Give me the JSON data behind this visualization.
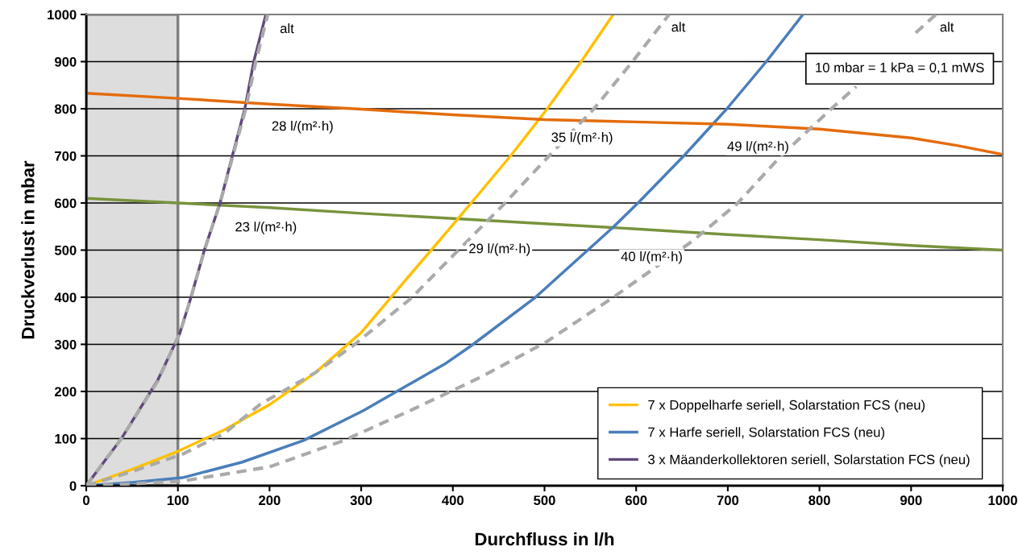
{
  "chart_data": {
    "type": "line",
    "xlabel": "Durchfluss in l/h",
    "ylabel": "Druckverlust in mbar",
    "xlim": [
      0,
      1000
    ],
    "ylim": [
      0,
      1000
    ],
    "xticks": [
      0,
      100,
      200,
      300,
      400,
      500,
      600,
      700,
      800,
      900,
      1000
    ],
    "yticks": [
      0,
      100,
      200,
      300,
      400,
      500,
      600,
      700,
      800,
      900,
      1000
    ],
    "grid": "y",
    "legend": "bottom right",
    "line_style": "solid",
    "marker": "none",
    "bands": [
      {
        "axis": "x",
        "from": 0,
        "to": 100,
        "color": "#dddddd"
      }
    ],
    "series": [
      {
        "color": "#77933c",
        "x": [
          0,
          100,
          200,
          300,
          400,
          500,
          600,
          700,
          800,
          900,
          1000
        ],
        "values": [
          610,
          600,
          590,
          578,
          567,
          556,
          545,
          533,
          522,
          510,
          500
        ]
      },
      {
        "name": "7 x Doppelharfe seriell, Solarstation FCS (neu)",
        "color": "#ffc000",
        "x": [
          0,
          50,
          100,
          150,
          200,
          250,
          300,
          350,
          391,
          420,
          463,
          503,
          540,
          575
        ],
        "values": [
          0,
          35,
          73,
          118,
          172,
          240,
          325,
          440,
          533,
          600,
          700,
          800,
          900,
          1000
        ]
      },
      {
        "name": "7 x Harfe seriell, Solarstation FCS (neu)",
        "color": "#4a7ebb",
        "x": [
          0,
          50,
          105,
          170,
          237,
          302,
          391,
          420,
          489,
          574,
          602,
          652,
          699,
          742,
          782
        ],
        "values": [
          0,
          7,
          17,
          50,
          96,
          159,
          258,
          297,
          398,
          547,
          600,
          700,
          800,
          900,
          1000
        ]
      },
      {
        "name": "3 x Mäanderkollektoren seriell, Solarstation FCS (neu)",
        "color": "#604a7b",
        "x": [
          0,
          38,
          78,
          102,
          114,
          129,
          146,
          159,
          173,
          183,
          196
        ],
        "values": [
          0,
          99,
          224,
          323,
          398,
          501,
          600,
          697,
          800,
          902,
          1000
        ]
      },
      {
        "color": "#e46c0a",
        "x": [
          0,
          100,
          200,
          300,
          400,
          500,
          600,
          700,
          800,
          900,
          950,
          1000
        ],
        "values": [
          833,
          822,
          810,
          799,
          787,
          777,
          772,
          767,
          757,
          738,
          722,
          703
        ]
      },
      {
        "color": "#aaaaaa",
        "line_style": "dashed",
        "x": [
          0,
          38,
          78,
          102,
          114,
          129,
          146,
          160,
          174,
          185,
          198
        ],
        "values": [
          0,
          99,
          222,
          323,
          398,
          500,
          600,
          700,
          800,
          900,
          1000
        ]
      },
      {
        "color": "#aaaaaa",
        "line_style": "dashed",
        "x": [
          0,
          50,
          105,
          150,
          190,
          250,
          291,
          354,
          400,
          457,
          505,
          554,
          596,
          636
        ],
        "values": [
          0,
          30,
          67,
          110,
          173,
          240,
          297,
          397,
          488,
          600,
          700,
          800,
          900,
          1000
        ]
      },
      {
        "color": "#aaaaaa",
        "line_style": "dashed",
        "x": [
          0,
          50,
          105,
          200,
          281,
          353,
          430,
          501,
          573,
          662,
          711,
          758,
          813,
          840,
          870,
          905,
          927
        ],
        "values": [
          0,
          4,
          10,
          40,
          96,
          159,
          230,
          304,
          397,
          520,
          600,
          700,
          800,
          847,
          null,
          961,
          1000
        ]
      }
    ],
    "annotations": [
      {
        "text": "alt",
        "x": 219,
        "y": 968
      },
      {
        "text": "alt",
        "x": 646,
        "y": 971
      },
      {
        "text": "alt",
        "x": 939,
        "y": 971
      },
      "28 l/(m²·h)",
      "23 l/(m²·h)",
      "35 l/(m²·h)",
      "29 l/(m²·h)",
      "49 l/(m²·h)",
      "40 l/(m²·h)",
      "10 mbar = 1 kPa = 0,1 mWS"
    ]
  }
}
